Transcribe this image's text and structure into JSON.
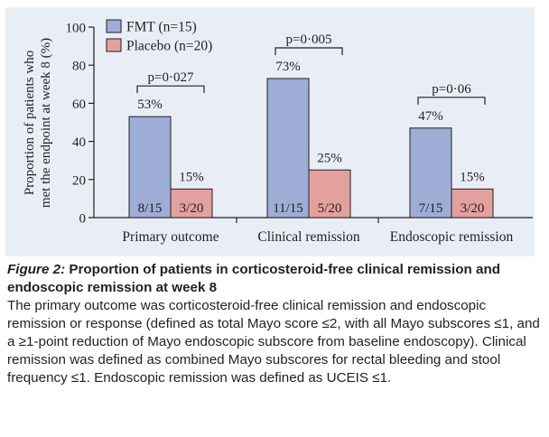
{
  "chart_data": {
    "type": "bar",
    "categories": [
      "Primary outcome",
      "Clinical remission",
      "Endoscopic remission"
    ],
    "series": [
      {
        "name": "FMT (n=15)",
        "color": "#9eadd6",
        "values": [
          53,
          73,
          47
        ],
        "value_labels": [
          "53%",
          "73%",
          "47%"
        ],
        "count_labels": [
          "8/15",
          "11/15",
          "7/15"
        ]
      },
      {
        "name": "Placebo (n=20)",
        "color": "#e3a19e",
        "values": [
          15,
          25,
          15
        ],
        "value_labels": [
          "15%",
          "25%",
          "15%"
        ],
        "count_labels": [
          "3/20",
          "5/20",
          "3/20"
        ]
      }
    ],
    "p_values": [
      "p=0·027",
      "p=0·005",
      "p=0·06"
    ],
    "ylabel_lines": [
      "Proportion of patients who",
      "met the endpoint at week 8 (%)"
    ],
    "yticks": [
      0,
      20,
      40,
      60,
      80,
      100
    ],
    "ylim": [
      0,
      100
    ],
    "legend_position": "top-left",
    "grid": false
  },
  "caption": {
    "figure_label": "Figure 2:",
    "title": " Proportion of patients in corticosteroid-free clinical remission and endoscopic remission at week 8",
    "body": "The primary outcome was corticosteroid-free clinical remission and endoscopic remission or response (defined as total Mayo score ≤2, with all Mayo subscores ≤1, and a ≥1-point reduction of Mayo endoscopic subscore from baseline endoscopy). Clinical remission was defined as combined Mayo subscores for rectal bleeding and stool frequency ≤1. Endoscopic remission was defined as UCEIS ≤1."
  }
}
